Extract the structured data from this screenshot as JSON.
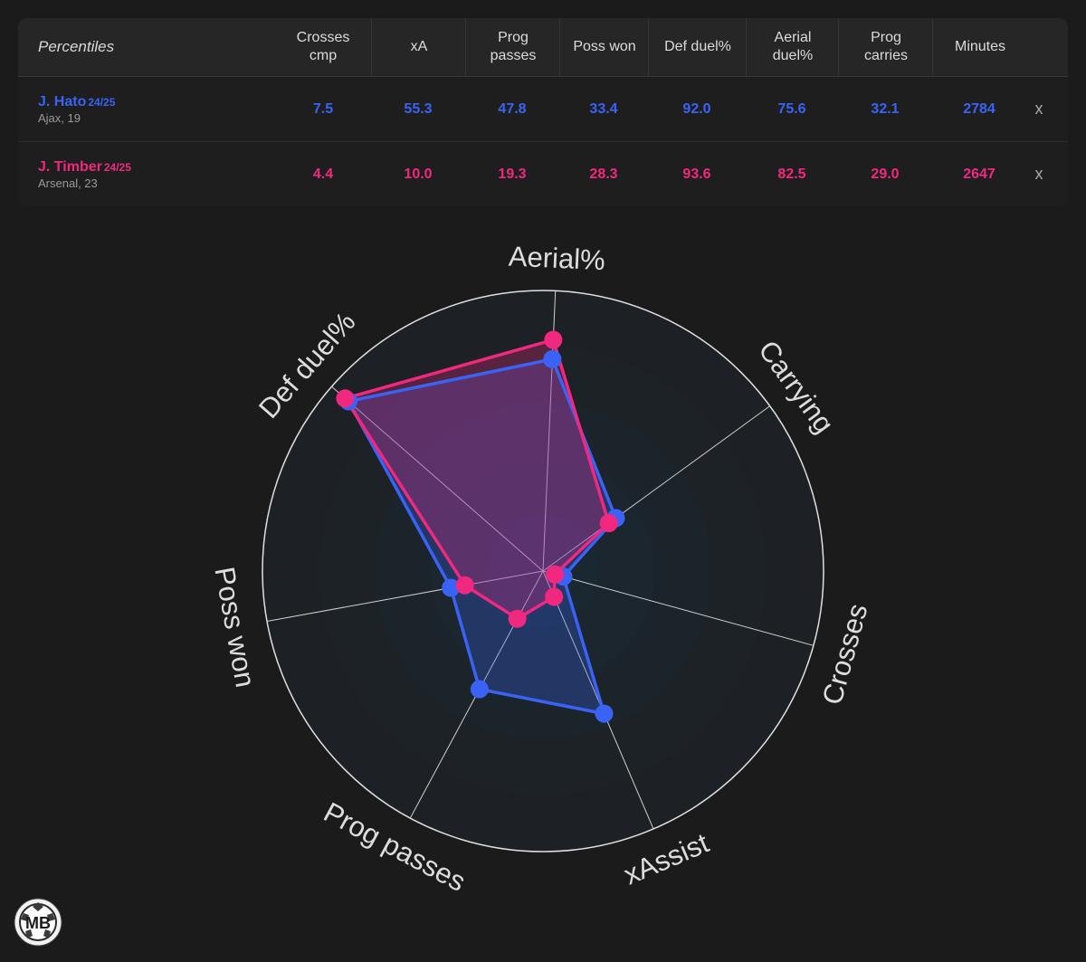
{
  "table": {
    "label": "Percentiles",
    "columns": [
      "Crosses\ncmp",
      "xA",
      "Prog\npasses",
      "Poss won",
      "Def duel%",
      "Aerial\nduel%",
      "Prog\ncarries",
      "Minutes"
    ],
    "players": [
      {
        "name": "J. Hato",
        "season": "24/25",
        "meta": "Ajax, 19",
        "color": "#3a63f5",
        "values": [
          "7.5",
          "55.3",
          "47.8",
          "33.4",
          "92.0",
          "75.6",
          "32.1",
          "2784"
        ],
        "remove_label": "x"
      },
      {
        "name": "J. Timber",
        "season": "24/25",
        "meta": "Arsenal, 23",
        "color": "#f0287f",
        "values": [
          "4.4",
          "10.0",
          "19.3",
          "28.3",
          "93.6",
          "82.5",
          "29.0",
          "2647"
        ],
        "remove_label": "x"
      }
    ]
  },
  "chart_data": {
    "type": "radar",
    "axes": [
      "Aerial%",
      "Carrying",
      "Crosses",
      "xAssist",
      "Prog passes",
      "Poss won",
      "Def duel%"
    ],
    "range": [
      0,
      100
    ],
    "series": [
      {
        "name": "J. Hato",
        "color": "#3a63f5",
        "values": [
          75.6,
          32.1,
          7.5,
          55.3,
          47.8,
          33.4,
          92.0
        ]
      },
      {
        "name": "J. Timber",
        "color": "#f0287f",
        "values": [
          82.5,
          29.0,
          4.4,
          10.0,
          19.3,
          28.3,
          93.6
        ]
      }
    ]
  },
  "logo": {
    "text": "MB"
  }
}
